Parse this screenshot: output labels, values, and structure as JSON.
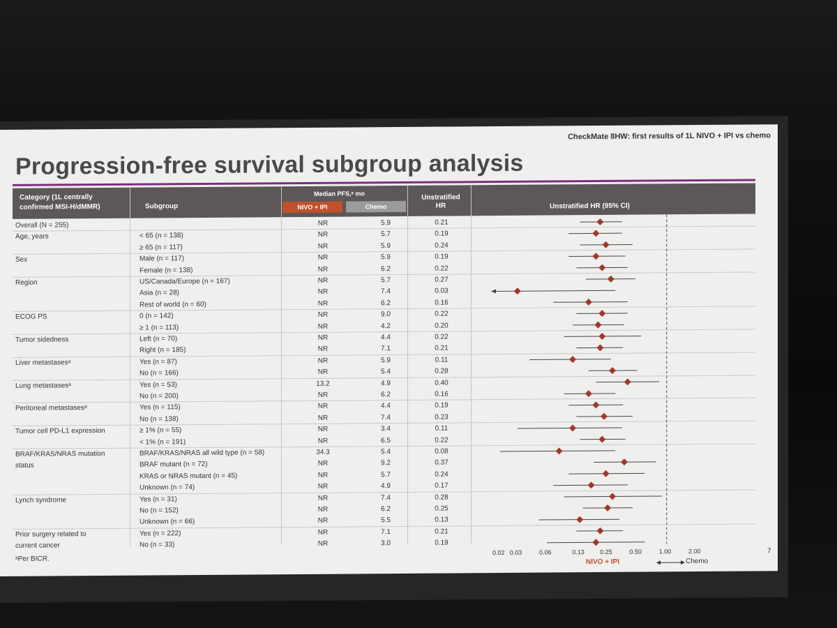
{
  "slide": {
    "subtitle": "CheckMate 8HW: first results of 1L NIVO + IPI vs chemo",
    "title": "Progression-free survival subgroup analysis",
    "footnote": "ᵃPer BICR.",
    "page_number": "7"
  },
  "table": {
    "col_category": [
      "Category (1L centrally",
      "confirmed MSI-H/dMMR)"
    ],
    "col_subgroup": "Subgroup",
    "col_median": "Median PFS,ᵃ mo",
    "col_nivo": "NIVO + IPI",
    "col_chemo": "Chemo",
    "col_hr": [
      "Unstratified",
      "HR"
    ],
    "col_plot": "Unstratified HR (95% CI)"
  },
  "chart_data": {
    "type": "forest",
    "title": "Progression-free survival subgroup analysis",
    "xlabel": "Unstratified HR (95% CI)",
    "x_scale": "log",
    "x_ticks": [
      "0.02",
      "0.03",
      "0.06",
      "0.13",
      "0.25",
      "0.50",
      "1.00",
      "2.00"
    ],
    "reference_line": 1.0,
    "legend_left": "NIVO + IPI",
    "legend_right": "Chemo",
    "colors": {
      "marker": "#a0392a",
      "nivo": "#c0512b",
      "chemo": "#9b9b9b",
      "header": "#5d5858"
    },
    "rows": [
      {
        "category": "Overall (N = 255)",
        "subgroup": "",
        "nivo": "NR",
        "chemo": "5.9",
        "hr": 0.21,
        "lo": 0.13,
        "hi": 0.35
      },
      {
        "category": "Age, years",
        "subgroup": "< 65 (n = 138)",
        "nivo": "NR",
        "chemo": "5.7",
        "hr": 0.19,
        "lo": 0.1,
        "hi": 0.35
      },
      {
        "category": "",
        "subgroup": "≥ 65 (n = 117)",
        "nivo": "NR",
        "chemo": "5.9",
        "hr": 0.24,
        "lo": 0.13,
        "hi": 0.45
      },
      {
        "category": "Sex",
        "subgroup": "Male (n = 117)",
        "nivo": "NR",
        "chemo": "5.9",
        "hr": 0.19,
        "lo": 0.1,
        "hi": 0.38
      },
      {
        "category": "",
        "subgroup": "Female (n = 138)",
        "nivo": "NR",
        "chemo": "6.2",
        "hr": 0.22,
        "lo": 0.12,
        "hi": 0.4
      },
      {
        "category": "Region",
        "subgroup": "US/Canada/Europe (n = 167)",
        "nivo": "NR",
        "chemo": "5.7",
        "hr": 0.27,
        "lo": 0.15,
        "hi": 0.48
      },
      {
        "category": "",
        "subgroup": "Asia (n = 28)",
        "nivo": "NR",
        "chemo": "7.4",
        "hr": 0.03,
        "lo": 0.008,
        "hi": 0.3,
        "arrow_left": true
      },
      {
        "category": "",
        "subgroup": "Rest of world (n = 60)",
        "nivo": "NR",
        "chemo": "6.2",
        "hr": 0.16,
        "lo": 0.07,
        "hi": 0.4
      },
      {
        "category": "ECOG PS",
        "subgroup": "0 (n = 142)",
        "nivo": "NR",
        "chemo": "9.0",
        "hr": 0.22,
        "lo": 0.12,
        "hi": 0.4
      },
      {
        "category": "",
        "subgroup": "≥ 1 (n = 113)",
        "nivo": "NR",
        "chemo": "4.2",
        "hr": 0.2,
        "lo": 0.11,
        "hi": 0.37
      },
      {
        "category": "Tumor sidedness",
        "subgroup": "Left (n = 70)",
        "nivo": "NR",
        "chemo": "4.4",
        "hr": 0.22,
        "lo": 0.09,
        "hi": 0.55
      },
      {
        "category": "",
        "subgroup": "Right (n = 185)",
        "nivo": "NR",
        "chemo": "7.1",
        "hr": 0.21,
        "lo": 0.12,
        "hi": 0.36
      },
      {
        "category": "Liver metastasesᵃ",
        "subgroup": "Yes (n = 87)",
        "nivo": "NR",
        "chemo": "5.9",
        "hr": 0.11,
        "lo": 0.04,
        "hi": 0.27
      },
      {
        "category": "",
        "subgroup": "No (n = 166)",
        "nivo": "NR",
        "chemo": "5.4",
        "hr": 0.28,
        "lo": 0.16,
        "hi": 0.5
      },
      {
        "category": "Lung metastasesᵃ",
        "subgroup": "Yes (n = 53)",
        "nivo": "13.2",
        "chemo": "4.9",
        "hr": 0.4,
        "lo": 0.19,
        "hi": 0.84
      },
      {
        "category": "",
        "subgroup": "No (n = 200)",
        "nivo": "NR",
        "chemo": "6.2",
        "hr": 0.16,
        "lo": 0.09,
        "hi": 0.3
      },
      {
        "category": "Peritoneal metastasesᵃ",
        "subgroup": "Yes (n = 115)",
        "nivo": "NR",
        "chemo": "4.4",
        "hr": 0.19,
        "lo": 0.1,
        "hi": 0.36
      },
      {
        "category": "",
        "subgroup": "No (n = 138)",
        "nivo": "NR",
        "chemo": "7.4",
        "hr": 0.23,
        "lo": 0.12,
        "hi": 0.45
      },
      {
        "category": "Tumor cell PD-L1 expression",
        "subgroup": "≥ 1% (n = 55)",
        "nivo": "NR",
        "chemo": "3.4",
        "hr": 0.11,
        "lo": 0.03,
        "hi": 0.35
      },
      {
        "category": "",
        "subgroup": "< 1% (n = 191)",
        "nivo": "NR",
        "chemo": "6.5",
        "hr": 0.22,
        "lo": 0.13,
        "hi": 0.38
      },
      {
        "category": "BRAF/KRAS/NRAS mutation",
        "subgroup": "BRAF/KRAS/NRAS all wild type (n = 58)",
        "nivo": "34.3",
        "chemo": "5.4",
        "hr": 0.08,
        "lo": 0.02,
        "hi": 0.3
      },
      {
        "category": "status",
        "subgroup": "BRAF mutant (n = 72)",
        "nivo": "NR",
        "chemo": "9.2",
        "hr": 0.37,
        "lo": 0.18,
        "hi": 0.78
      },
      {
        "category": "",
        "subgroup": "KRAS or NRAS mutant (n = 45)",
        "nivo": "NR",
        "chemo": "5.7",
        "hr": 0.24,
        "lo": 0.1,
        "hi": 0.6
      },
      {
        "category": "",
        "subgroup": "Unknown (n = 74)",
        "nivo": "NR",
        "chemo": "4.9",
        "hr": 0.17,
        "lo": 0.07,
        "hi": 0.4
      },
      {
        "category": "Lynch syndrome",
        "subgroup": "Yes (n = 31)",
        "nivo": "NR",
        "chemo": "7.4",
        "hr": 0.28,
        "lo": 0.09,
        "hi": 0.9
      },
      {
        "category": "",
        "subgroup": "No (n = 152)",
        "nivo": "NR",
        "chemo": "6.2",
        "hr": 0.25,
        "lo": 0.14,
        "hi": 0.45
      },
      {
        "category": "",
        "subgroup": "Unknown (n = 66)",
        "nivo": "NR",
        "chemo": "5.5",
        "hr": 0.13,
        "lo": 0.05,
        "hi": 0.33
      },
      {
        "category": "Prior surgery related to",
        "subgroup": "Yes (n = 222)",
        "nivo": "NR",
        "chemo": "7.1",
        "hr": 0.21,
        "lo": 0.12,
        "hi": 0.36
      },
      {
        "category": "current cancer",
        "subgroup": "No (n = 33)",
        "nivo": "NR",
        "chemo": "3.0",
        "hr": 0.19,
        "lo": 0.06,
        "hi": 0.6
      }
    ]
  }
}
